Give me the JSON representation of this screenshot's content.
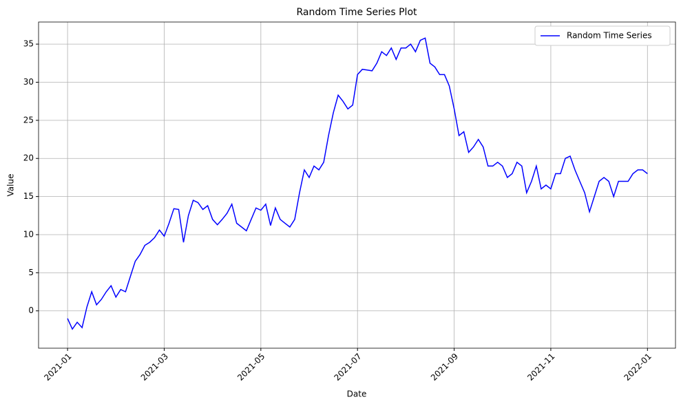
{
  "chart_data": {
    "type": "line",
    "title": "Random Time Series Plot",
    "x_label": "Date",
    "y_label": "Value",
    "x": [
      0,
      0.1,
      0.2,
      0.3,
      0.4,
      0.5,
      0.6,
      0.7,
      0.8,
      0.9,
      1,
      1.1,
      1.2,
      1.3,
      1.4,
      1.5,
      1.6,
      1.7,
      1.8,
      1.9,
      2,
      2.1,
      2.2,
      2.3,
      2.4,
      2.5,
      2.6,
      2.7,
      2.8,
      2.9,
      3,
      3.1,
      3.2,
      3.3,
      3.4,
      3.5,
      3.6,
      3.7,
      3.8,
      3.9,
      4,
      4.1,
      4.2,
      4.3,
      4.4,
      4.5,
      4.6,
      4.7,
      4.8,
      4.9,
      5,
      5.1,
      5.2,
      5.3,
      5.4,
      5.5,
      5.6,
      5.7,
      5.8,
      5.9,
      6,
      6.1,
      6.2,
      6.3,
      6.4,
      6.5,
      6.6,
      6.7,
      6.8,
      6.9,
      7,
      7.1,
      7.2,
      7.3,
      7.4,
      7.5,
      7.6,
      7.7,
      7.8,
      7.9,
      8,
      8.1,
      8.2,
      8.3,
      8.4,
      8.5,
      8.6,
      8.7,
      8.8,
      8.9,
      9,
      9.1,
      9.2,
      9.3,
      9.4,
      9.5,
      9.6,
      9.7,
      9.8,
      9.9,
      10,
      10.1,
      10.2,
      10.3,
      10.4,
      10.5,
      10.6,
      10.7,
      10.8,
      10.9,
      11,
      11.1,
      11.2,
      11.3,
      11.4,
      11.5,
      11.6,
      11.7,
      11.8,
      11.9,
      12
    ],
    "series": [
      {
        "name": "Random Time Series",
        "color": "#0000ff",
        "values": [
          -1,
          -2.4,
          -1.5,
          -2.2,
          0.5,
          2.5,
          0.8,
          1.5,
          2.5,
          3.3,
          1.8,
          2.8,
          2.5,
          4.5,
          6.5,
          7.4,
          8.6,
          9,
          9.6,
          10.6,
          9.8,
          11.5,
          13.4,
          13.3,
          9,
          12.5,
          14.5,
          14.2,
          13.3,
          13.8,
          12,
          11.3,
          12,
          12.8,
          14,
          11.5,
          11,
          10.5,
          12,
          13.5,
          13.2,
          14,
          11.2,
          13.5,
          12,
          11.5,
          11,
          12,
          15.5,
          18.5,
          17.5,
          19,
          18.5,
          19.5,
          23,
          26,
          28.3,
          27.5,
          26.5,
          27,
          31,
          31.7,
          31.6,
          31.5,
          32.5,
          34,
          33.5,
          34.5,
          33,
          34.5,
          34.5,
          35,
          34,
          35.5,
          35.8,
          32.5,
          32,
          31,
          31,
          29.5,
          26.5,
          23,
          23.5,
          20.8,
          21.5,
          22.5,
          21.5,
          19,
          19,
          19.5,
          19,
          17.5,
          18,
          19.5,
          19,
          15.5,
          17,
          19,
          16,
          16.5,
          16,
          18,
          18,
          20,
          20.3,
          18.5,
          17,
          15.5,
          13,
          15,
          17,
          17.5,
          17,
          15,
          17,
          17,
          17,
          18,
          18.5,
          18.5,
          18
        ]
      }
    ],
    "xlim": [
      -0.6,
      12.58
    ],
    "xticks": [
      {
        "value": 0,
        "label": "2021-01"
      },
      {
        "value": 2,
        "label": "2021-03"
      },
      {
        "value": 4,
        "label": "2021-05"
      },
      {
        "value": 6,
        "label": "2021-07"
      },
      {
        "value": 8,
        "label": "2021-09"
      },
      {
        "value": 10,
        "label": "2021-11"
      },
      {
        "value": 12,
        "label": "2022-01"
      }
    ],
    "ylim": [
      -4.9,
      37.9
    ],
    "yticks": [
      0,
      5,
      10,
      15,
      20,
      25,
      30,
      35
    ],
    "grid": true,
    "legend": "upper-right"
  }
}
